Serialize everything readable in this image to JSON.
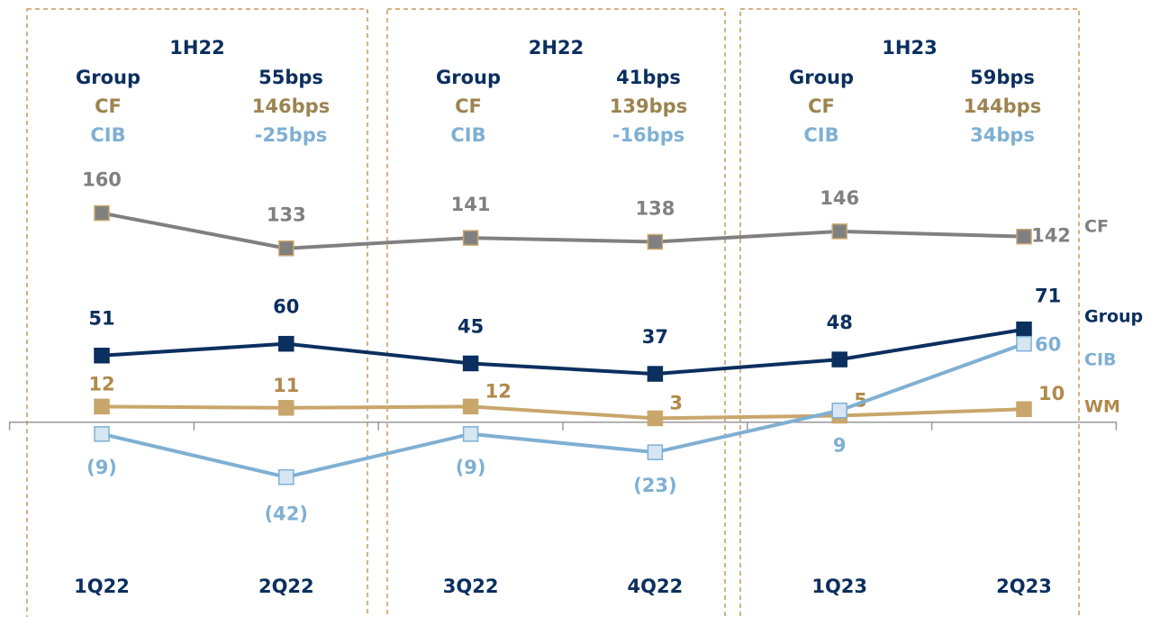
{
  "chart_data": {
    "type": "line",
    "categories": [
      "1Q22",
      "2Q22",
      "3Q22",
      "4Q22",
      "1Q23",
      "2Q23"
    ],
    "series": [
      {
        "name": "CF",
        "color": "#808080",
        "values": [
          160,
          133,
          141,
          138,
          146,
          142
        ]
      },
      {
        "name": "Group",
        "color": "#0b2f5e",
        "values": [
          51,
          60,
          45,
          37,
          48,
          71
        ]
      },
      {
        "name": "WM",
        "color": "#c9a66b",
        "values": [
          12,
          11,
          12,
          3,
          5,
          10
        ]
      },
      {
        "name": "CIB",
        "color": "#7fb0d3",
        "values": [
          -9,
          -42,
          -9,
          -23,
          9,
          60
        ],
        "value_labels": [
          "(9)",
          "(42)",
          "(9)",
          "(23)",
          "9",
          "60"
        ]
      }
    ],
    "ylim": [
      -149,
      323
    ],
    "periods": [
      {
        "label": "1H22",
        "rows": [
          {
            "name": "Group",
            "value": "55bps"
          },
          {
            "name": "CF",
            "value": "146bps"
          },
          {
            "name": "CIB",
            "value": "-25bps"
          }
        ]
      },
      {
        "label": "2H22",
        "rows": [
          {
            "name": "Group",
            "value": "41bps"
          },
          {
            "name": "CF",
            "value": "139bps"
          },
          {
            "name": "CIB",
            "value": "-16bps"
          }
        ]
      },
      {
        "label": "1H23",
        "rows": [
          {
            "name": "Group",
            "value": "59bps"
          },
          {
            "name": "CF",
            "value": "144bps"
          },
          {
            "name": "CIB",
            "value": "34bps"
          }
        ]
      }
    ]
  }
}
